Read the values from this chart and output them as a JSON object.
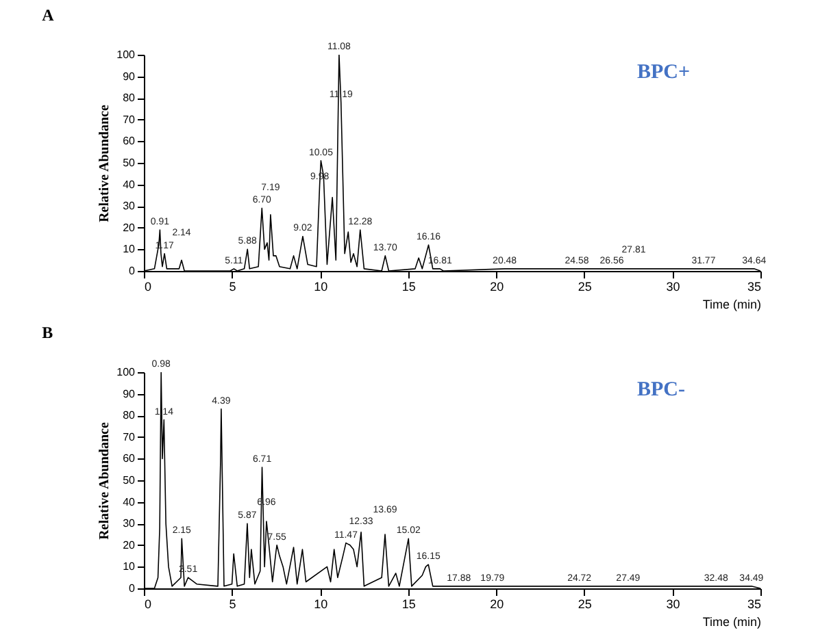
{
  "chart_data": [
    {
      "type": "line",
      "title": "A",
      "xlabel": "Time (min)",
      "ylabel": "Relative Abundance",
      "xlim": [
        0,
        35
      ],
      "xticks": [
        0,
        5,
        10,
        15,
        20,
        25,
        30,
        35
      ],
      "ylim": [
        0,
        100
      ],
      "yticks": [
        0,
        10,
        20,
        30,
        40,
        50,
        60,
        70,
        80,
        90,
        100
      ],
      "series": [
        {
          "color": "#000000",
          "x": [
            0,
            0.6,
            0.8,
            0.85,
            0.91,
            0.97,
            1.05,
            1.17,
            1.3,
            2.0,
            2.14,
            2.3,
            4.9,
            5.11,
            5.3,
            5.7,
            5.88,
            6.0,
            6.5,
            6.7,
            6.85,
            7.0,
            7.1,
            7.19,
            7.35,
            7.5,
            7.7,
            8.3,
            8.5,
            8.7,
            9.02,
            9.3,
            9.8,
            9.98,
            10.05,
            10.2,
            10.4,
            10.7,
            10.9,
            11.08,
            11.19,
            11.4,
            11.6,
            11.75,
            11.9,
            12.1,
            12.28,
            12.5,
            13.5,
            13.7,
            13.9,
            15.4,
            15.6,
            15.8,
            16.16,
            16.4,
            16.81,
            17,
            20.48,
            24.58,
            26.56,
            27.81,
            31.77,
            34.64,
            35
          ],
          "values": [
            0,
            1,
            10,
            12,
            19,
            8,
            2,
            8,
            1,
            1,
            5,
            0,
            0,
            1,
            0,
            1,
            10,
            1,
            2,
            29,
            10,
            13,
            5,
            26,
            7,
            7,
            2,
            1,
            7,
            1,
            16,
            3,
            2,
            40,
            51,
            44,
            3,
            34,
            5,
            100,
            78,
            8,
            18,
            4,
            8,
            2,
            19,
            1,
            0,
            7,
            0,
            1,
            6,
            1,
            12,
            1,
            1,
            0,
            1,
            1,
            1,
            1,
            1,
            1,
            0
          ]
        }
      ],
      "annotations": [
        "BPC+",
        {
          "text": "0.91",
          "x": 0.91,
          "y": 19
        },
        {
          "text": "1.17",
          "x": 1.17,
          "y": 8
        },
        {
          "text": "2.14",
          "x": 2.14,
          "y": 5
        },
        {
          "text": "5.11",
          "x": 5.11,
          "y": 1
        },
        {
          "text": "5.88",
          "x": 5.88,
          "y": 10
        },
        {
          "text": "6.70",
          "x": 6.7,
          "y": 29
        },
        {
          "text": "7.19",
          "x": 7.19,
          "y": 26
        },
        {
          "text": "9.02",
          "x": 9.02,
          "y": 16
        },
        {
          "text": "9.98",
          "x": 9.98,
          "y": 40
        },
        {
          "text": "10.05",
          "x": 10.05,
          "y": 51
        },
        {
          "text": "11.08",
          "x": 11.08,
          "y": 100
        },
        {
          "text": "11.19",
          "x": 11.19,
          "y": 78
        },
        {
          "text": "12.28",
          "x": 12.28,
          "y": 19
        },
        {
          "text": "13.70",
          "x": 13.7,
          "y": 7
        },
        {
          "text": "16.16",
          "x": 16.16,
          "y": 12
        },
        {
          "text": "16.81",
          "x": 16.81,
          "y": 1
        },
        {
          "text": "20.48",
          "x": 20.48,
          "y": 1
        },
        {
          "text": "24.58",
          "x": 24.58,
          "y": 1
        },
        {
          "text": "26.56",
          "x": 26.56,
          "y": 1
        },
        {
          "text": "27.81",
          "x": 27.81,
          "y": 1
        },
        {
          "text": "31.77",
          "x": 31.77,
          "y": 1
        },
        {
          "text": "34.64",
          "x": 34.64,
          "y": 1
        }
      ]
    },
    {
      "type": "line",
      "title": "B",
      "xlabel": "Time (min)",
      "ylabel": "Relative Abundance",
      "xlim": [
        0,
        35
      ],
      "xticks": [
        0,
        5,
        10,
        15,
        20,
        25,
        30,
        35
      ],
      "ylim": [
        0,
        100
      ],
      "yticks": [
        0,
        10,
        20,
        30,
        40,
        50,
        60,
        70,
        80,
        90,
        100
      ],
      "series": [
        {
          "color": "#000000",
          "x": [
            0,
            0.6,
            0.8,
            0.9,
            0.98,
            1.05,
            1.14,
            1.25,
            1.4,
            1.6,
            2.1,
            2.15,
            2.3,
            2.51,
            3.0,
            4.2,
            4.35,
            4.39,
            4.55,
            5.0,
            5.1,
            5.3,
            5.7,
            5.87,
            6.0,
            6.1,
            6.3,
            6.6,
            6.71,
            6.85,
            6.96,
            7.1,
            7.3,
            7.5,
            7.55,
            7.7,
            7.9,
            8.1,
            8.5,
            8.7,
            9.0,
            9.2,
            10.4,
            10.6,
            10.8,
            11.0,
            11.3,
            11.47,
            11.7,
            11.9,
            12.1,
            12.33,
            12.5,
            13.5,
            13.69,
            13.9,
            14.3,
            14.5,
            15.02,
            15.2,
            15.8,
            16.0,
            16.15,
            16.4,
            17.88,
            19.79,
            24.72,
            27.49,
            32.48,
            34.49,
            35
          ],
          "values": [
            0,
            0,
            5,
            28,
            100,
            60,
            78,
            30,
            10,
            1,
            5,
            23,
            1,
            5,
            2,
            1,
            58,
            83,
            1,
            2,
            16,
            1,
            2,
            30,
            5,
            18,
            2,
            8,
            56,
            10,
            31,
            20,
            3,
            17,
            20,
            15,
            10,
            2,
            19,
            2,
            18,
            3,
            10,
            3,
            18,
            5,
            15,
            21,
            20,
            18,
            10,
            26,
            1,
            5,
            25,
            1,
            7,
            1,
            23,
            1,
            6,
            10,
            11,
            1,
            1,
            1,
            1,
            1,
            1,
            1,
            0
          ]
        }
      ],
      "annotations": [
        "BPC-",
        {
          "text": "0.98",
          "x": 0.98,
          "y": 100
        },
        {
          "text": "1.14",
          "x": 1.14,
          "y": 78
        },
        {
          "text": "2.15",
          "x": 2.15,
          "y": 23
        },
        {
          "text": "2.51",
          "x": 2.51,
          "y": 5
        },
        {
          "text": "4.39",
          "x": 4.39,
          "y": 83
        },
        {
          "text": "5.87",
          "x": 5.87,
          "y": 30
        },
        {
          "text": "6.71",
          "x": 6.71,
          "y": 56
        },
        {
          "text": "6.96",
          "x": 6.96,
          "y": 31
        },
        {
          "text": "7.55",
          "x": 7.55,
          "y": 20
        },
        {
          "text": "11.47",
          "x": 11.47,
          "y": 21
        },
        {
          "text": "12.33",
          "x": 12.33,
          "y": 26
        },
        {
          "text": "13.69",
          "x": 13.69,
          "y": 25
        },
        {
          "text": "15.02",
          "x": 15.02,
          "y": 23
        },
        {
          "text": "16.15",
          "x": 16.15,
          "y": 11
        },
        {
          "text": "17.88",
          "x": 17.88,
          "y": 1
        },
        {
          "text": "19.79",
          "x": 19.79,
          "y": 1
        },
        {
          "text": "24.72",
          "x": 24.72,
          "y": 1
        },
        {
          "text": "27.49",
          "x": 27.49,
          "y": 1
        },
        {
          "text": "32.48",
          "x": 32.48,
          "y": 1
        },
        {
          "text": "34.49",
          "x": 34.49,
          "y": 1
        }
      ]
    }
  ]
}
